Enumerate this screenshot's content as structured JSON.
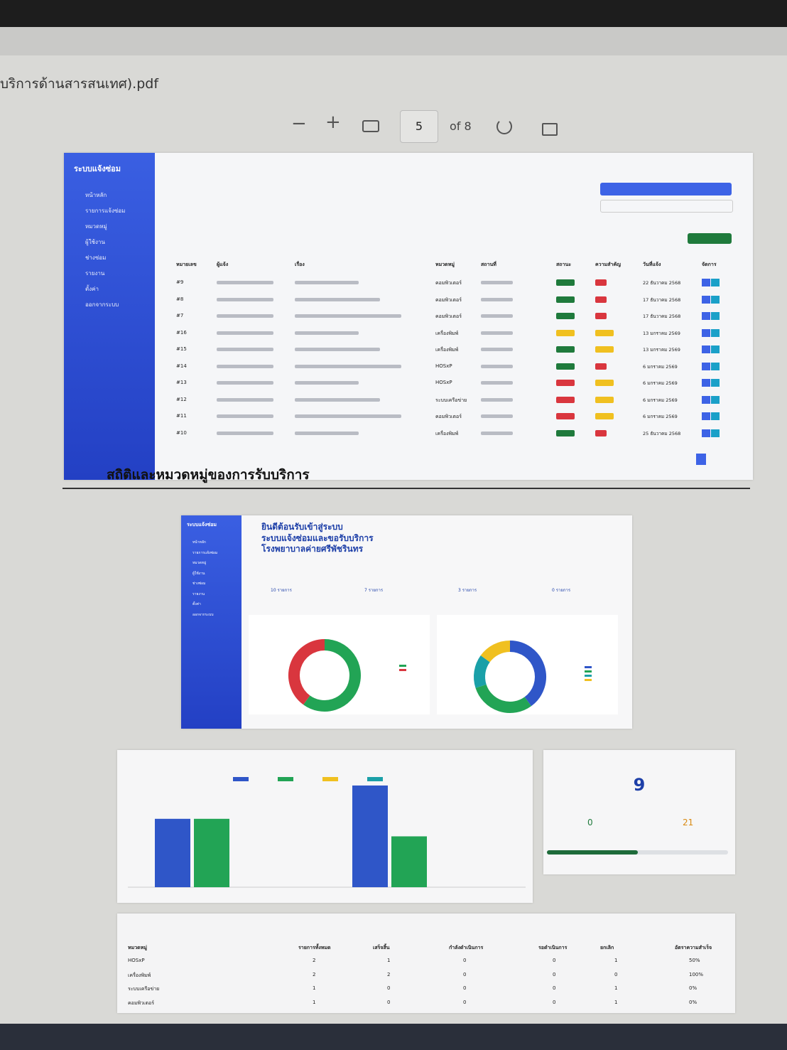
{
  "viewer": {
    "file_name": "บริการด้านสารสนเทศ).pdf",
    "page": "5",
    "page_count": "of 8"
  },
  "screenshot1": {
    "brand": "ระบบแจ้งซ่อม",
    "menu": [
      "หน้าหลัก",
      "รายการแจ้งซ่อม",
      "หมวดหมู่",
      "ผู้ใช้งาน",
      "ช่างซ่อม",
      "รายงาน",
      "ตั้งค่า",
      "ออกจากระบบ"
    ],
    "headers": [
      "หมายเลข",
      "ผู้แจ้ง",
      "เรื่อง",
      "หมวดหมู่",
      "สถานที่",
      "สถานะ",
      "ความสำคัญ",
      "วันที่แจ้ง",
      "จัดการ"
    ],
    "rows": [
      {
        "id": "#9",
        "category": "คอมพิวเตอร์",
        "date": "22 ธันวาคม 2568",
        "status_color": "#1f7a3c",
        "priority_color": "#d9363e"
      },
      {
        "id": "#8",
        "category": "คอมพิวเตอร์",
        "date": "17 ธันวาคม 2568",
        "status_color": "#1f7a3c",
        "priority_color": "#d9363e"
      },
      {
        "id": "#7",
        "category": "คอมพิวเตอร์",
        "date": "17 ธันวาคม 2568",
        "status_color": "#1f7a3c",
        "priority_color": "#d9363e"
      },
      {
        "id": "#16",
        "category": "เครื่องพิมพ์",
        "date": "13 มกราคม 2569",
        "status_color": "#f0c020",
        "priority_color": "#f0c020"
      },
      {
        "id": "#15",
        "category": "เครื่องพิมพ์",
        "date": "13 มกราคม 2569",
        "status_color": "#1f7a3c",
        "priority_color": "#f0c020"
      },
      {
        "id": "#14",
        "category": "HOSxP",
        "date": "6 มกราคม 2569",
        "status_color": "#1f7a3c",
        "priority_color": "#d9363e"
      },
      {
        "id": "#13",
        "category": "HOSxP",
        "date": "6 มกราคม 2569",
        "status_color": "#d9363e",
        "priority_color": "#f0c020"
      },
      {
        "id": "#12",
        "category": "ระบบเครือข่าย",
        "date": "6 มกราคม 2569",
        "status_color": "#d9363e",
        "priority_color": "#f0c020"
      },
      {
        "id": "#11",
        "category": "คอมพิวเตอร์",
        "date": "6 มกราคม 2569",
        "status_color": "#d9363e",
        "priority_color": "#f0c020"
      },
      {
        "id": "#10",
        "category": "เครื่องพิมพ์",
        "date": "25 ธันวาคม 2568",
        "status_color": "#1f7a3c",
        "priority_color": "#d9363e"
      }
    ]
  },
  "section_heading": "สถิติและหมวดหมู่ของการรับบริการ",
  "screenshot2": {
    "welcome": [
      "ยินดีต้อนรับเข้าสู่ระบบ",
      "ระบบแจ้งซ่อมและขอรับบริการ",
      "โรงพยาบาลค่ายศรีพัชรินทร"
    ],
    "stat_cards": [
      "10 รายการ",
      "7 รายการ",
      "3 รายการ",
      "0 รายการ"
    ],
    "donuts": [
      {
        "values": [
          60,
          40
        ],
        "colors": [
          "#22a455",
          "#d9363e"
        ]
      },
      {
        "values": [
          40,
          30,
          15,
          15
        ],
        "colors": [
          "#2f56c8",
          "#22a455",
          "#1aa0a8",
          "#f0c020"
        ]
      }
    ]
  },
  "bar_chart": {
    "ylim": [
      0,
      6
    ],
    "series": [
      {
        "color": "#2f56c8",
        "values": [
          3.9,
          5.8
        ]
      },
      {
        "color": "#22a455",
        "values": [
          3.9,
          2.9
        ]
      }
    ],
    "legend_colors": [
      "#2f56c8",
      "#22a455",
      "#f0c020",
      "#1aa0a8"
    ]
  },
  "summary": {
    "total": "9",
    "completed": "0",
    "other": "21",
    "progress": 50
  },
  "category_table": {
    "headers": [
      "หมวดหมู่",
      "รายการทั้งหมด",
      "เสร็จสิ้น",
      "กำลังดำเนินการ",
      "รอดำเนินการ",
      "ยกเลิก",
      "อัตราความสำเร็จ"
    ],
    "rows": [
      [
        "HOSxP",
        "2",
        "1",
        "0",
        "0",
        "1",
        "50%"
      ],
      [
        "เครื่องพิมพ์",
        "2",
        "2",
        "0",
        "0",
        "0",
        "100%"
      ],
      [
        "ระบบเครือข่าย",
        "1",
        "0",
        "0",
        "0",
        "1",
        "0%"
      ],
      [
        "คอมพิวเตอร์",
        "1",
        "0",
        "0",
        "0",
        "1",
        "0%"
      ]
    ]
  }
}
